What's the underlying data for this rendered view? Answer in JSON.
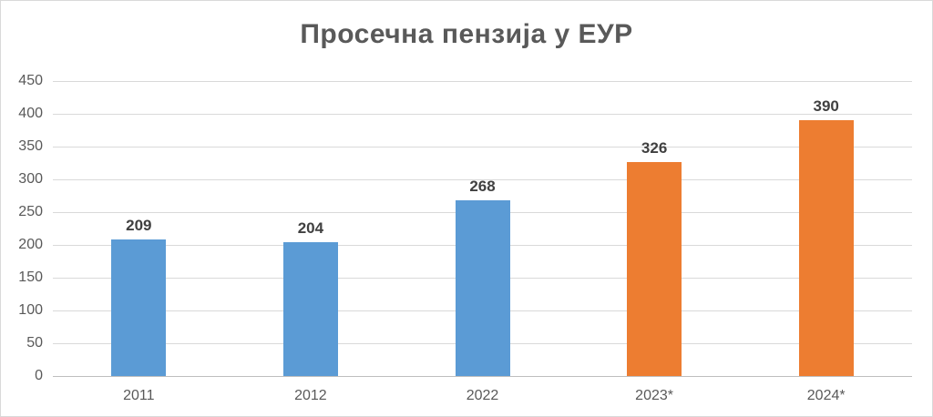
{
  "chart_data": {
    "type": "bar",
    "title": "Просечна пензија у ЕУР",
    "categories": [
      "2011",
      "2012",
      "2022",
      "2023*",
      "2024*"
    ],
    "values": [
      209,
      204,
      268,
      326,
      390
    ],
    "data_labels": [
      "209",
      "204",
      "268",
      "326",
      "390"
    ],
    "bar_colors": [
      "#5b9bd5",
      "#5b9bd5",
      "#5b9bd5",
      "#ed7d31",
      "#ed7d31"
    ],
    "ylim": [
      0,
      450
    ],
    "yticks": [
      0,
      50,
      100,
      150,
      200,
      250,
      300,
      350,
      400,
      450
    ],
    "xlabel": "",
    "ylabel": "",
    "grid": true,
    "legend": false
  },
  "palette": {
    "series_blue": "#5b9bd5",
    "series_orange": "#ed7d31",
    "gridline": "#d9d9d9",
    "axis_line": "#bfbfbf",
    "title_color": "#595959",
    "tick_label_color": "#595959",
    "data_label_color": "#404040",
    "background": "#ffffff",
    "frame_border": "#d9d9d9"
  }
}
